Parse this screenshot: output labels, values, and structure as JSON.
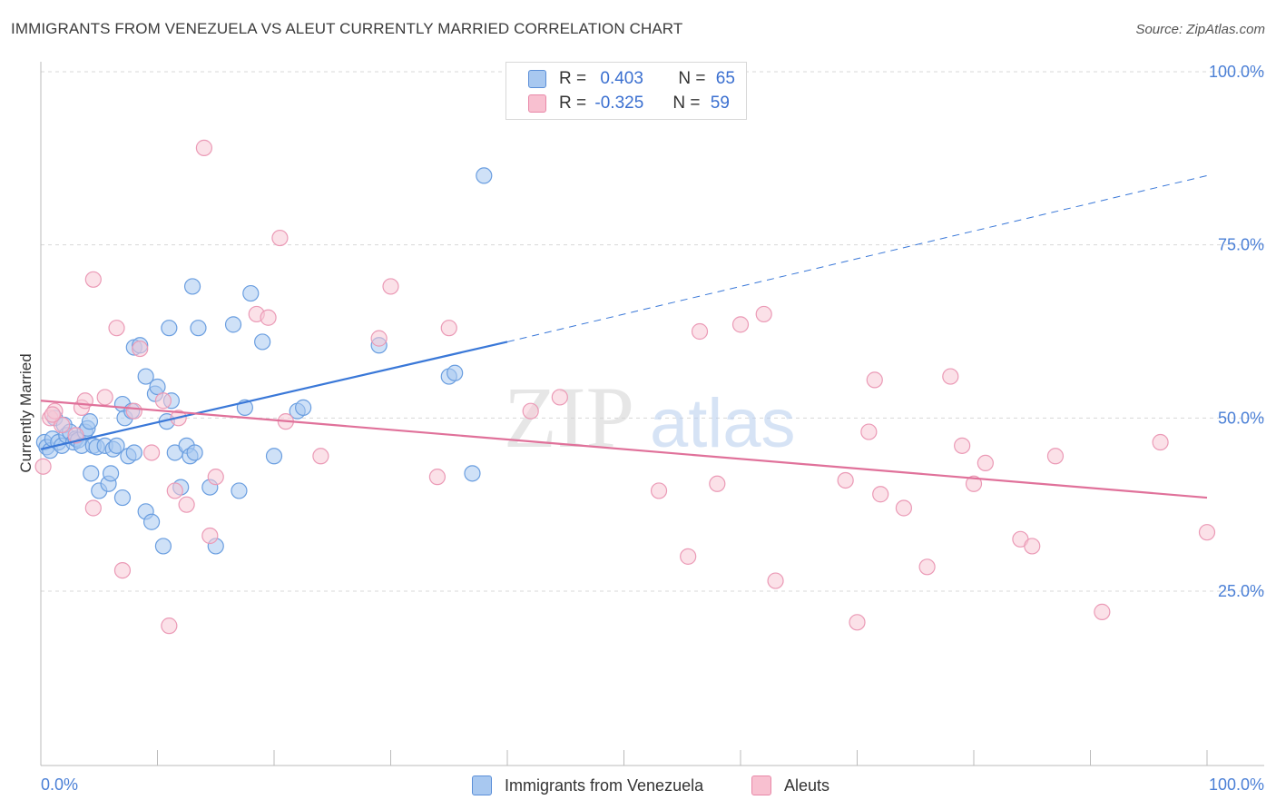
{
  "title": "IMMIGRANTS FROM VENEZUELA VS ALEUT CURRENTLY MARRIED CORRELATION CHART",
  "source": "Source: ZipAtlas.com",
  "watermark": {
    "zip": "ZIP",
    "atlas": "atlas"
  },
  "legend_top": [
    {
      "r_label": "R =",
      "r_value": "0.403",
      "n_label": "N =",
      "n_value": "65",
      "color": "#a8c8f0",
      "border": "#5b8fd8"
    },
    {
      "r_label": "R =",
      "r_value": "-0.325",
      "n_label": "N =",
      "n_value": "59",
      "color": "#f8c0d0",
      "border": "#e888a8"
    }
  ],
  "colors": {
    "blue_fill": "#a8c8f0",
    "blue_stroke": "#6a9ee0",
    "blue_line": "#3a78d8",
    "pink_fill": "#f8c8d6",
    "pink_stroke": "#eb9ab6",
    "pink_line": "#e0719a",
    "tick_text": "#4a7fd6",
    "grid": "#d8d8d8"
  },
  "chart_data": {
    "type": "scatter",
    "title": "IMMIGRANTS FROM VENEZUELA VS ALEUT CURRENTLY MARRIED CORRELATION CHART",
    "xlabel": "",
    "ylabel": "Currently Married",
    "xlim": [
      0,
      100
    ],
    "ylim": [
      0,
      107
    ],
    "x_tick_labels": [
      "0.0%",
      "100.0%"
    ],
    "y_ticks": [
      25,
      50,
      75,
      100
    ],
    "y_tick_labels": [
      "25.0%",
      "50.0%",
      "75.0%",
      "100.0%"
    ],
    "grid": true,
    "legend_position": "top-center",
    "series": [
      {
        "name": "Immigrants from Venezuela",
        "R": 0.403,
        "N": 65,
        "trend": {
          "x": [
            0,
            40
          ],
          "y": [
            45.5,
            61
          ]
        },
        "trend_dashed": {
          "x": [
            40,
            100
          ],
          "y": [
            61,
            85
          ]
        },
        "points": [
          [
            0.3,
            46.5
          ],
          [
            0.5,
            45.8
          ],
          [
            0.8,
            45.3
          ],
          [
            1.0,
            47
          ],
          [
            1.2,
            50
          ],
          [
            1.5,
            46.5
          ],
          [
            1.8,
            46
          ],
          [
            2.0,
            49
          ],
          [
            2.2,
            47.5
          ],
          [
            2.5,
            48
          ],
          [
            2.8,
            46.5
          ],
          [
            3.0,
            47
          ],
          [
            3.2,
            46.8
          ],
          [
            3.5,
            46
          ],
          [
            3.8,
            48
          ],
          [
            4.0,
            48.5
          ],
          [
            4.2,
            49.5
          ],
          [
            4.3,
            42
          ],
          [
            4.5,
            46
          ],
          [
            4.8,
            45.8
          ],
          [
            5.0,
            39.5
          ],
          [
            5.5,
            46
          ],
          [
            5.8,
            40.5
          ],
          [
            6.0,
            42
          ],
          [
            6.2,
            45.5
          ],
          [
            6.5,
            46
          ],
          [
            7.0,
            38.5
          ],
          [
            7.0,
            52
          ],
          [
            7.2,
            50
          ],
          [
            7.5,
            44.5
          ],
          [
            7.8,
            51
          ],
          [
            8.0,
            45
          ],
          [
            8.0,
            60.2
          ],
          [
            8.5,
            60.5
          ],
          [
            9.0,
            56
          ],
          [
            9.0,
            36.5
          ],
          [
            9.5,
            35
          ],
          [
            9.8,
            53.5
          ],
          [
            10,
            54.5
          ],
          [
            10.5,
            31.5
          ],
          [
            10.8,
            49.5
          ],
          [
            11,
            63
          ],
          [
            11.2,
            52.5
          ],
          [
            11.5,
            45
          ],
          [
            12.0,
            40
          ],
          [
            12.5,
            46
          ],
          [
            12.8,
            44.5
          ],
          [
            13.0,
            69
          ],
          [
            13.2,
            45
          ],
          [
            13.5,
            63
          ],
          [
            14.5,
            40
          ],
          [
            15,
            31.5
          ],
          [
            16.5,
            63.5
          ],
          [
            17,
            39.5
          ],
          [
            17.5,
            51.5
          ],
          [
            18.0,
            68
          ],
          [
            19,
            61
          ],
          [
            20,
            44.5
          ],
          [
            22,
            51
          ],
          [
            22.5,
            51.5
          ],
          [
            29,
            60.5
          ],
          [
            35,
            56
          ],
          [
            35.5,
            56.5
          ],
          [
            37,
            42
          ],
          [
            38,
            85
          ]
        ]
      },
      {
        "name": "Aleuts",
        "R": -0.325,
        "N": 59,
        "trend": {
          "x": [
            0,
            100
          ],
          "y": [
            52.5,
            38.5
          ]
        },
        "points": [
          [
            0.2,
            43
          ],
          [
            0.8,
            50
          ],
          [
            1.2,
            51
          ],
          [
            1.8,
            49
          ],
          [
            3.0,
            47.5
          ],
          [
            3.5,
            51.5
          ],
          [
            3.8,
            52.5
          ],
          [
            4.5,
            37
          ],
          [
            4.5,
            70
          ],
          [
            5.5,
            53
          ],
          [
            6.5,
            63
          ],
          [
            7.0,
            28
          ],
          [
            8.0,
            51
          ],
          [
            8.5,
            60
          ],
          [
            9.5,
            45
          ],
          [
            10.5,
            52.5
          ],
          [
            11,
            20
          ],
          [
            11.5,
            39.5
          ],
          [
            11.8,
            50
          ],
          [
            12.5,
            37.5
          ],
          [
            14,
            89
          ],
          [
            14.5,
            33
          ],
          [
            15,
            41.5
          ],
          [
            18.5,
            65
          ],
          [
            19.5,
            64.5
          ],
          [
            20.5,
            76
          ],
          [
            21,
            49.5
          ],
          [
            24,
            44.5
          ],
          [
            29,
            61.5
          ],
          [
            30,
            69
          ],
          [
            34,
            41.5
          ],
          [
            35,
            63
          ],
          [
            42,
            51
          ],
          [
            44.5,
            53
          ],
          [
            53,
            39.5
          ],
          [
            55.5,
            30
          ],
          [
            56.5,
            62.5
          ],
          [
            58,
            40.5
          ],
          [
            60,
            63.5
          ],
          [
            62,
            65
          ],
          [
            63,
            26.5
          ],
          [
            69,
            41
          ],
          [
            70,
            20.5
          ],
          [
            71,
            48
          ],
          [
            71.5,
            55.5
          ],
          [
            72,
            39
          ],
          [
            74,
            37
          ],
          [
            76,
            28.5
          ],
          [
            78,
            56
          ],
          [
            79,
            46
          ],
          [
            80,
            40.5
          ],
          [
            81,
            43.5
          ],
          [
            84,
            32.5
          ],
          [
            85,
            31.5
          ],
          [
            87,
            44.5
          ],
          [
            91,
            22
          ],
          [
            96,
            46.5
          ],
          [
            100,
            33.5
          ],
          [
            1.0,
            50.5
          ]
        ]
      }
    ]
  },
  "bottom_legend": [
    {
      "label": "Immigrants from Venezuela",
      "color": "#a8c8f0",
      "border": "#5b8fd8"
    },
    {
      "label": "Aleuts",
      "color": "#f8c0d0",
      "border": "#e888a8"
    }
  ]
}
